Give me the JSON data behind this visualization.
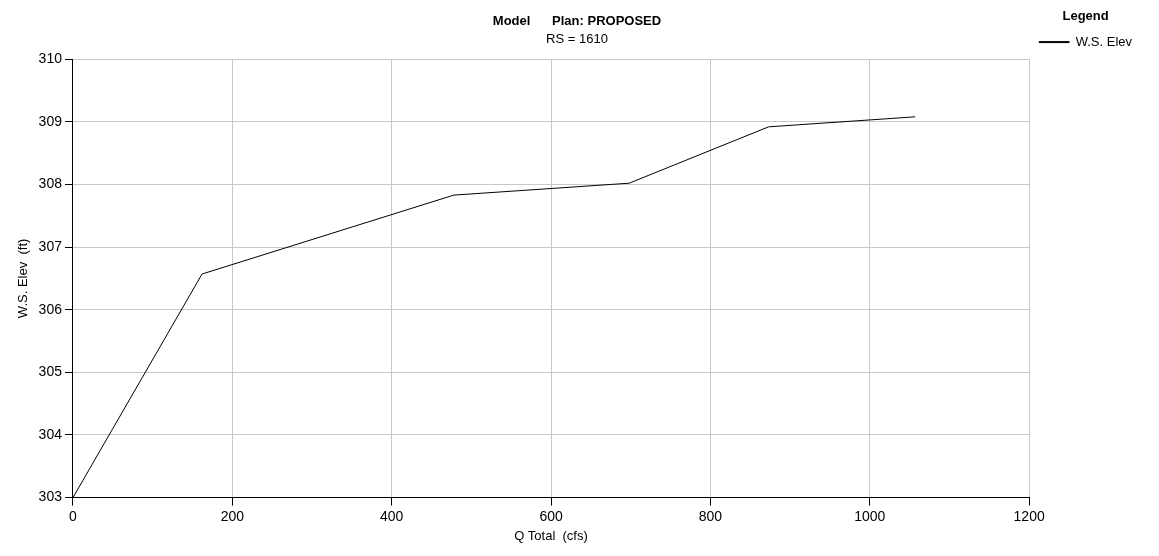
{
  "chart_data": {
    "type": "line",
    "title": "Model      Plan: PROPOSED",
    "subtitle": "RS = 1610",
    "xlabel": "Q Total  (cfs)",
    "ylabel": "W.S. Elev  (ft)",
    "legend_title": "Legend",
    "x": [
      0,
      162,
      478,
      698,
      873,
      1057
    ],
    "series": [
      {
        "name": "W.S. Elev",
        "color": "#000000",
        "values": [
          303.0,
          306.57,
          307.83,
          308.02,
          308.92,
          309.08
        ]
      }
    ],
    "xlim": [
      0,
      1200
    ],
    "xticks": [
      0,
      200,
      400,
      600,
      800,
      1000,
      1200
    ],
    "ylim": [
      303,
      310
    ],
    "yticks": [
      303,
      304,
      305,
      306,
      307,
      308,
      309,
      310
    ],
    "grid": true,
    "legend": "top right",
    "marker": "none",
    "line_style": "solid"
  }
}
